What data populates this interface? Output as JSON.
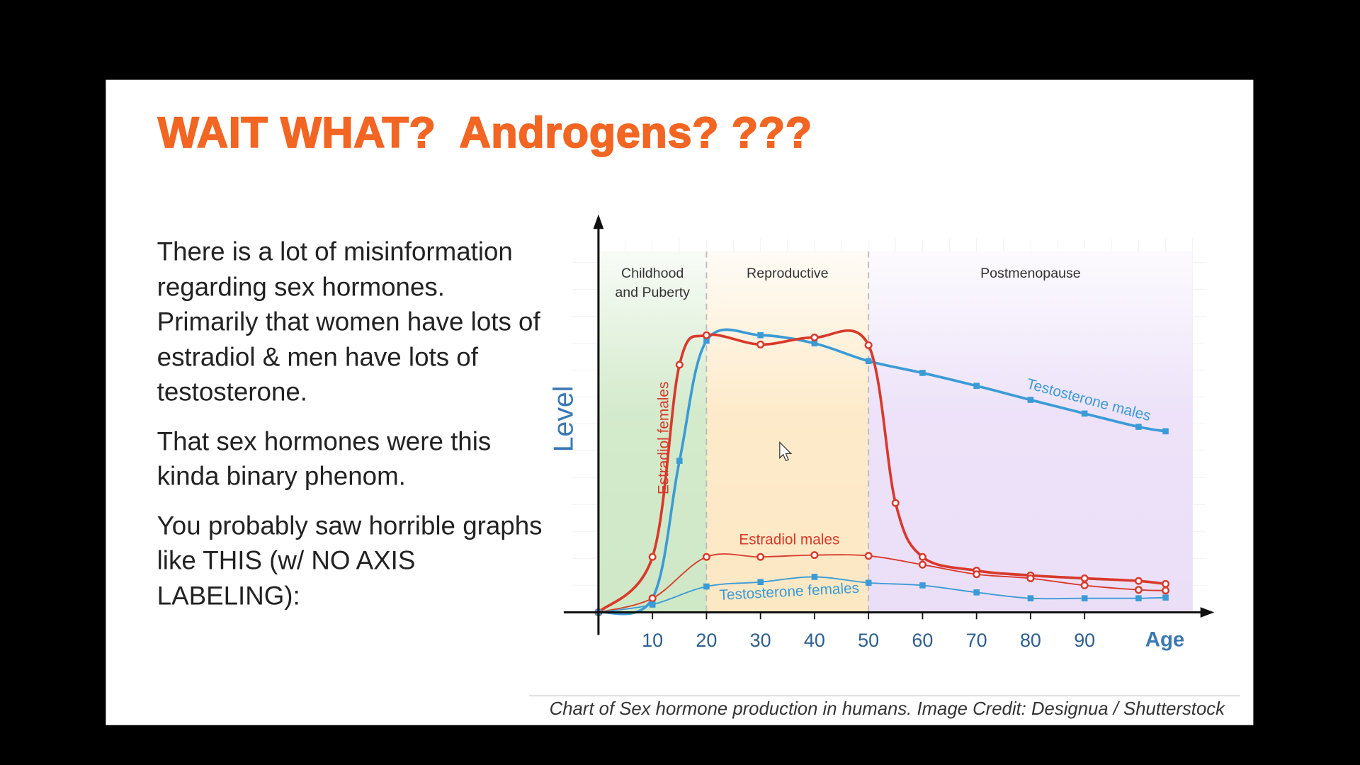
{
  "slide": {
    "title": "WAIT WHAT?  Androgens? ???",
    "paragraphs": [
      "There is a lot of misinformation regarding sex hormones. Primarily that women have lots of estradiol & men have lots of testosterone.",
      "That sex hormones were this kinda binary phenom.",
      "You probably saw horrible graphs like THIS (w/ NO AXIS LABELING):"
    ]
  },
  "chart_data": {
    "type": "line",
    "x_label": "Age",
    "y_label": "Level",
    "caption": "Chart of Sex hormone production in humans. Image Credit: Designua / Shutterstock",
    "xlim": [
      0,
      110
    ],
    "ylim": [
      0,
      100
    ],
    "xticks": [
      10,
      20,
      30,
      40,
      50,
      60,
      70,
      80,
      90
    ],
    "phases": [
      {
        "label": "Childhood and Puberty",
        "start": 0,
        "end": 20,
        "color": "#cfe8c6"
      },
      {
        "label": "Reproductive",
        "start": 20,
        "end": 50,
        "color": "#fde8c4"
      },
      {
        "label": "Postmenopause",
        "start": 50,
        "end": 110,
        "color": "#ebdff8"
      }
    ],
    "series": [
      {
        "name": "Testosterone males",
        "color": "#3b9bd6",
        "line_width": 3,
        "marker": "square",
        "x": [
          0,
          10,
          15,
          20,
          30,
          40,
          50,
          60,
          70,
          80,
          90,
          100,
          105
        ],
        "values": [
          0,
          3.8,
          41,
          73.5,
          75,
          72.8,
          68,
          64.8,
          61.3,
          57.5,
          53.8,
          50.2,
          49
        ]
      },
      {
        "name": "Estradiol females",
        "color": "#d9392b",
        "line_width": 3,
        "marker": "circle",
        "x": [
          0,
          10,
          15,
          20,
          30,
          40,
          50,
          55,
          60,
          70,
          80,
          90,
          100,
          105
        ],
        "values": [
          0,
          15,
          67,
          75,
          72.5,
          74.4,
          72.3,
          29.6,
          15,
          11.3,
          10,
          9.2,
          8.5,
          7.7
        ]
      },
      {
        "name": "Estradiol males",
        "color": "#d9392b",
        "line_width": 1.5,
        "marker": "circle",
        "x": [
          0,
          10,
          20,
          30,
          40,
          50,
          60,
          70,
          80,
          90,
          100,
          105
        ],
        "values": [
          0,
          3.8,
          15,
          15,
          15.5,
          15.3,
          12.9,
          10.3,
          9.2,
          7.3,
          6.1,
          5.9
        ]
      },
      {
        "name": "Testosterone females",
        "color": "#3b9bd6",
        "line_width": 1.5,
        "marker": "square",
        "x": [
          0,
          10,
          20,
          30,
          40,
          50,
          60,
          70,
          80,
          90,
          100,
          105
        ],
        "values": [
          0,
          2.1,
          7,
          8.2,
          9.6,
          8,
          7.3,
          5.4,
          3.8,
          3.8,
          3.8,
          4
        ]
      }
    ]
  }
}
